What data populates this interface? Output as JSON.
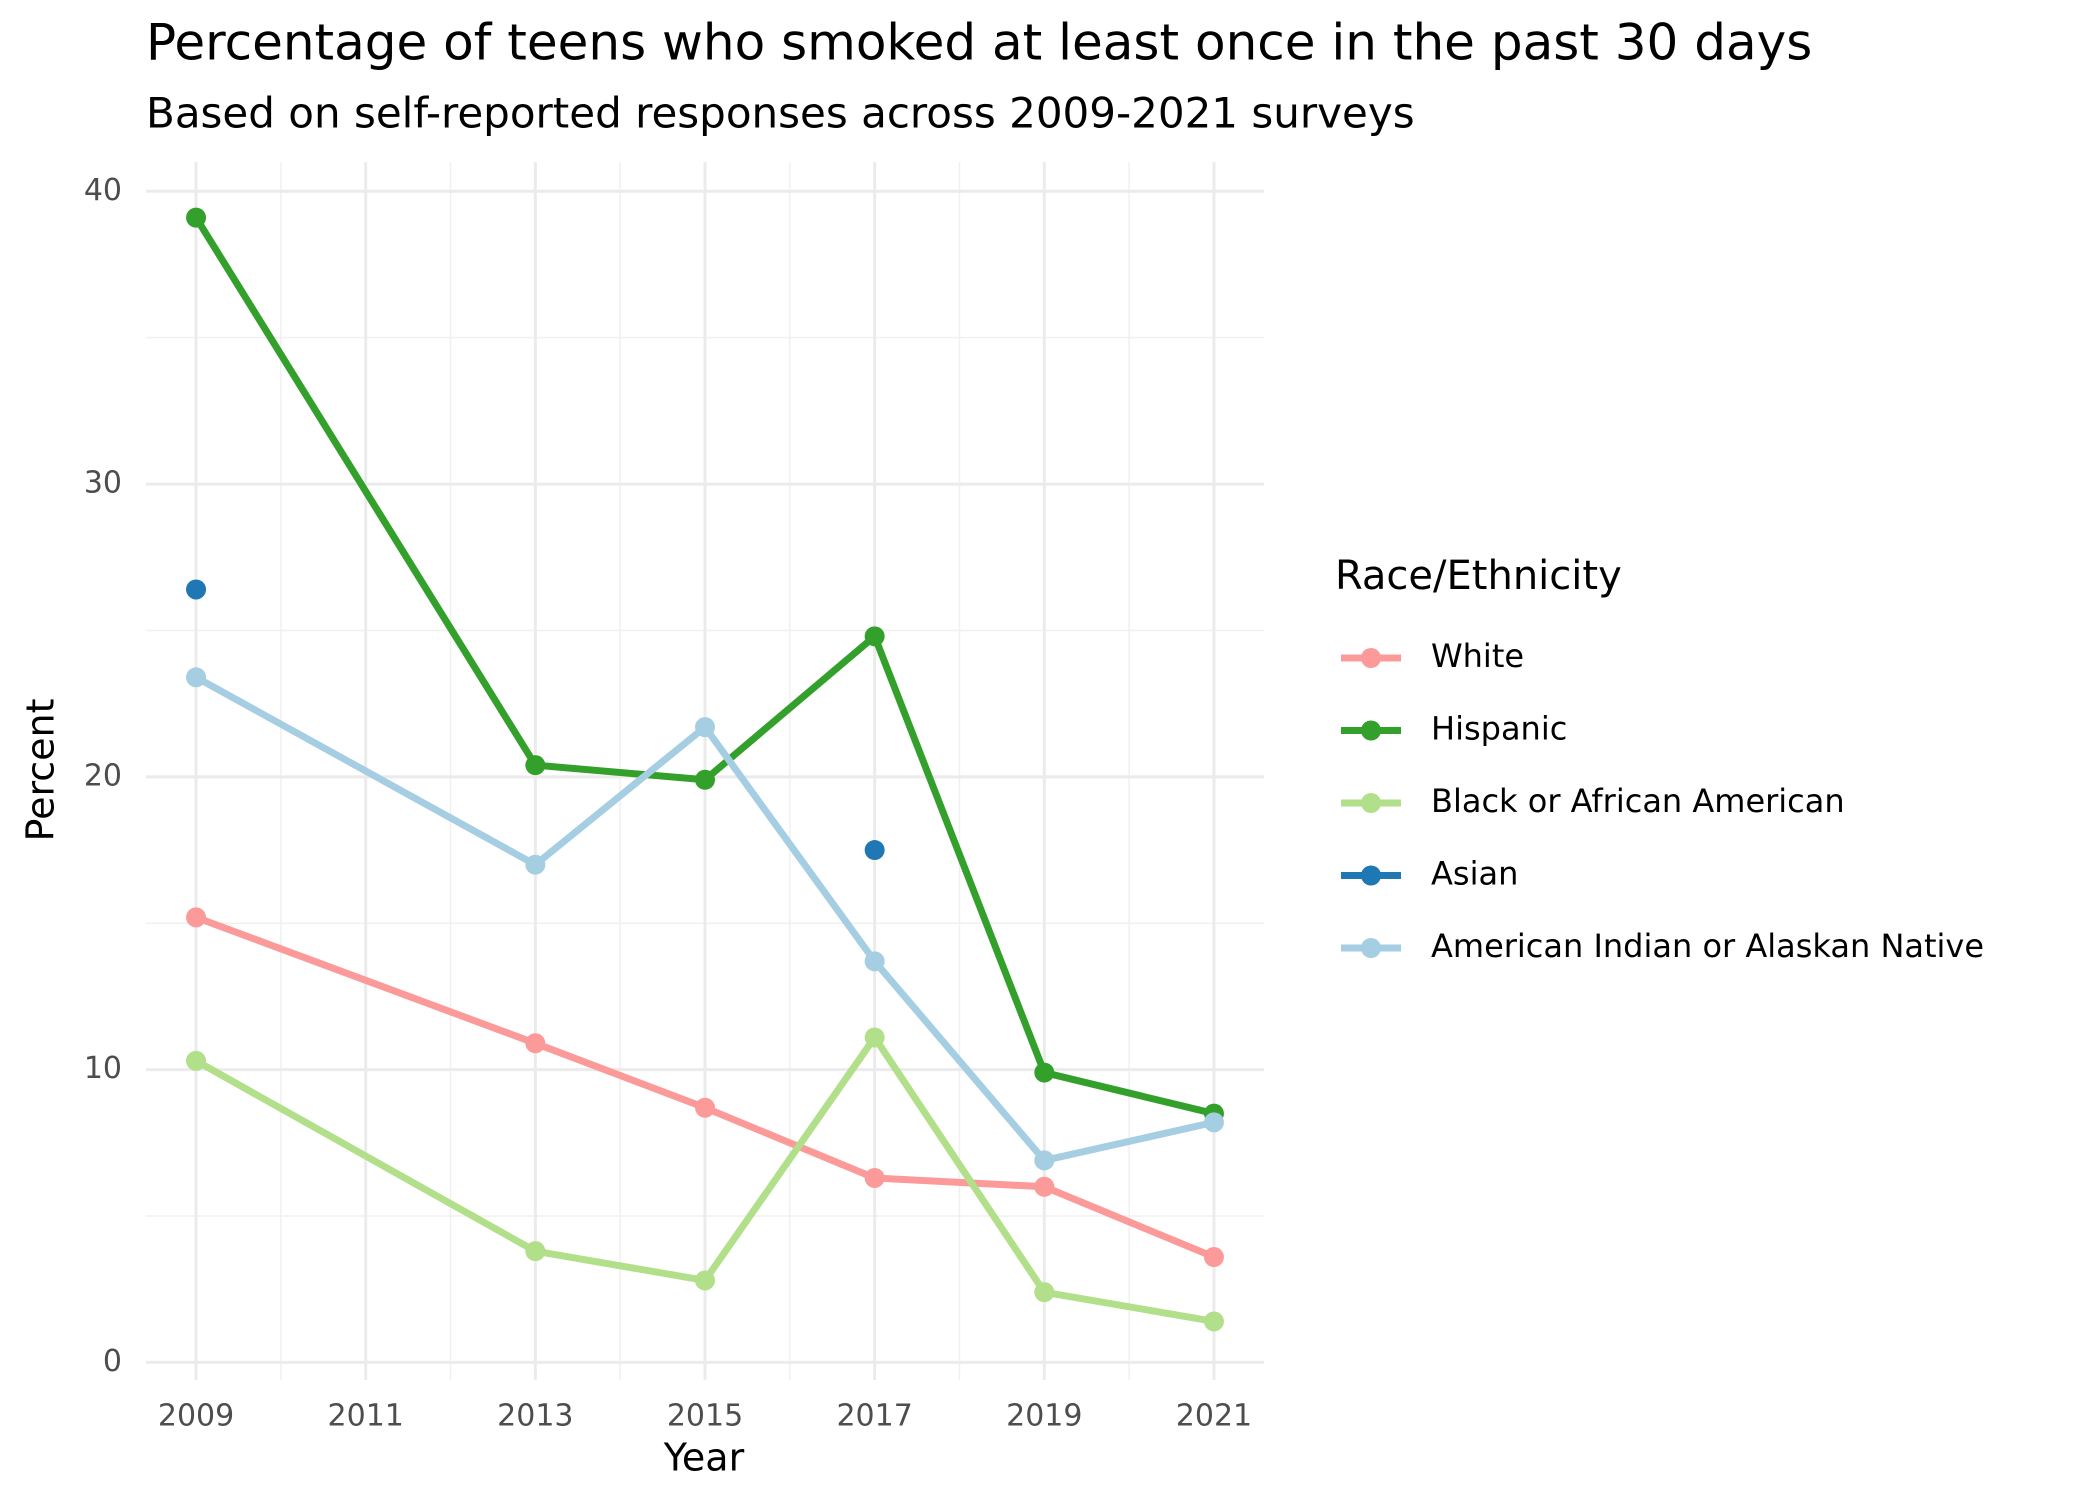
{
  "chart_data": {
    "type": "line",
    "title": "Percentage of teens who smoked at least once in the past 30 days",
    "subtitle": "Based on self-reported responses across 2009-2021 surveys",
    "x_label": "Year",
    "y_label": "Percent",
    "legend_title": "Race/Ethnicity",
    "x": [
      2009,
      2013,
      2015,
      2017,
      2019,
      2021
    ],
    "series": [
      {
        "name": "White",
        "color": "#fb9a99",
        "values": [
          15.2,
          10.9,
          8.7,
          6.3,
          6.0,
          3.6
        ]
      },
      {
        "name": "Hispanic",
        "color": "#33a02c",
        "values": [
          39.1,
          20.4,
          19.9,
          24.8,
          9.9,
          8.5
        ]
      },
      {
        "name": "Black or African American",
        "color": "#b2df8a",
        "values": [
          10.3,
          3.8,
          2.8,
          11.1,
          2.4,
          1.4
        ]
      },
      {
        "name": "Asian",
        "color": "#1f78b4",
        "values": [
          26.4,
          null,
          null,
          17.5,
          null,
          null
        ]
      },
      {
        "name": "American Indian or Alaskan Native",
        "color": "#a6cee3",
        "values": [
          23.4,
          17.0,
          21.7,
          13.7,
          6.9,
          8.2
        ]
      }
    ],
    "xlim": [
      2008.41,
      2021.59
    ],
    "xticks": [
      2009,
      2011,
      2013,
      2015,
      2017,
      2019,
      2021
    ],
    "ylim": [
      -0.6,
      41
    ],
    "yticks": [
      0,
      10,
      20,
      30,
      40
    ],
    "grid": true,
    "legend": "right"
  }
}
